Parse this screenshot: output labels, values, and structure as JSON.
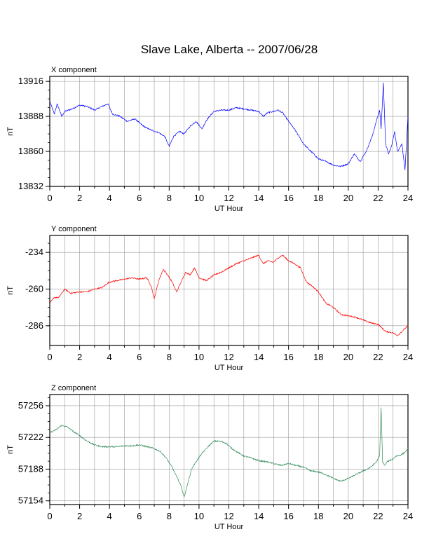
{
  "page_title": "Slave Lake, Alberta -- 2007/06/28",
  "chart_data": [
    {
      "type": "line",
      "title": "X component",
      "xlabel": "UT Hour",
      "ylabel": "nT",
      "xlim": [
        0,
        24
      ],
      "ylim": [
        13832,
        13920
      ],
      "x_ticks": [
        0,
        2,
        4,
        6,
        8,
        10,
        12,
        14,
        16,
        18,
        20,
        22,
        24
      ],
      "y_ticks": [
        13832,
        13860,
        13888,
        13916
      ],
      "grid": true,
      "series": [
        {
          "color": "#0000ff",
          "x": [
            0,
            0.3,
            0.5,
            0.8,
            1.0,
            1.5,
            2.0,
            2.5,
            3.0,
            3.5,
            3.9,
            4.2,
            4.7,
            5.2,
            5.7,
            6.3,
            6.8,
            7.3,
            7.7,
            8.0,
            8.3,
            8.7,
            9.0,
            9.4,
            9.8,
            10.2,
            10.5,
            11.0,
            11.5,
            12.0,
            12.5,
            13.0,
            13.5,
            14.0,
            14.3,
            14.6,
            15.0,
            15.3,
            15.6,
            16.0,
            16.5,
            17.0,
            17.5,
            18.0,
            18.5,
            19.0,
            19.5,
            20.0,
            20.4,
            20.8,
            21.2,
            21.6,
            21.9,
            22.1,
            22.2,
            22.35,
            22.5,
            22.7,
            22.9,
            23.1,
            23.3,
            23.6,
            23.8,
            24.0
          ],
          "y": [
            13900,
            13890,
            13898,
            13888,
            13892,
            13894,
            13897,
            13896,
            13893,
            13896,
            13898,
            13890,
            13888,
            13884,
            13886,
            13880,
            13877,
            13875,
            13872,
            13864,
            13872,
            13876,
            13874,
            13880,
            13884,
            13878,
            13885,
            13892,
            13893,
            13893,
            13895,
            13894,
            13893,
            13892,
            13888,
            13891,
            13892,
            13893,
            13891,
            13884,
            13876,
            13866,
            13860,
            13854,
            13852,
            13849,
            13848,
            13850,
            13858,
            13852,
            13860,
            13872,
            13885,
            13893,
            13878,
            13915,
            13866,
            13858,
            13864,
            13876,
            13860,
            13866,
            13845,
            13888
          ]
        }
      ]
    },
    {
      "type": "line",
      "title": "Y component",
      "xlabel": "UT Hour",
      "ylabel": "nT",
      "xlim": [
        0,
        24
      ],
      "ylim": [
        -300,
        -222
      ],
      "x_ticks": [
        0,
        2,
        4,
        6,
        8,
        10,
        12,
        14,
        16,
        18,
        20,
        22,
        24
      ],
      "y_ticks": [
        -286,
        -260,
        -234
      ],
      "grid": true,
      "series": [
        {
          "color": "#ff0000",
          "x": [
            0,
            0.3,
            0.6,
            1.0,
            1.4,
            2.0,
            2.5,
            3.0,
            3.5,
            4.0,
            4.5,
            5.0,
            5.5,
            6.0,
            6.5,
            6.8,
            7.0,
            7.3,
            7.6,
            7.9,
            8.2,
            8.5,
            8.8,
            9.1,
            9.4,
            9.7,
            10.0,
            10.5,
            11.0,
            11.5,
            12.0,
            12.5,
            13.0,
            13.5,
            14.0,
            14.3,
            14.6,
            15.0,
            15.3,
            15.6,
            16.0,
            16.4,
            16.8,
            17.2,
            17.6,
            18.0,
            18.5,
            19.0,
            19.5,
            20.0,
            20.5,
            21.0,
            21.5,
            22.0,
            22.5,
            23.0,
            23.3,
            23.6,
            24.0
          ],
          "y": [
            -270,
            -266,
            -266,
            -260,
            -263,
            -262,
            -262,
            -260,
            -259,
            -255,
            -254,
            -253,
            -252,
            -253,
            -252,
            -258,
            -267,
            -254,
            -246,
            -250,
            -255,
            -262,
            -255,
            -248,
            -250,
            -245,
            -252,
            -254,
            -250,
            -248,
            -245,
            -242,
            -240,
            -238,
            -236,
            -242,
            -240,
            -241,
            -238,
            -236,
            -240,
            -242,
            -245,
            -255,
            -258,
            -262,
            -270,
            -273,
            -278,
            -279,
            -280,
            -282,
            -284,
            -285,
            -290,
            -291,
            -293,
            -290,
            -286
          ]
        }
      ]
    },
    {
      "type": "line",
      "title": "Z component",
      "xlabel": "UT Hour",
      "ylabel": "nT",
      "xlim": [
        0,
        24
      ],
      "ylim": [
        57150,
        57268
      ],
      "x_ticks": [
        0,
        2,
        4,
        6,
        8,
        10,
        12,
        14,
        16,
        18,
        20,
        22,
        24
      ],
      "y_ticks": [
        57154,
        57188,
        57222,
        57256
      ],
      "grid": true,
      "series": [
        {
          "color": "#2e8b57",
          "x": [
            0,
            0.4,
            0.8,
            1.2,
            1.6,
            2.0,
            2.5,
            3.0,
            3.5,
            4.0,
            4.5,
            5.0,
            5.5,
            6.0,
            6.5,
            7.0,
            7.4,
            7.8,
            8.2,
            8.5,
            8.8,
            9.0,
            9.2,
            9.5,
            9.8,
            10.2,
            10.6,
            11.0,
            11.4,
            11.8,
            12.2,
            12.6,
            13.0,
            13.5,
            14.0,
            14.5,
            15.0,
            15.5,
            16.0,
            16.5,
            17.0,
            17.5,
            18.0,
            18.5,
            19.0,
            19.5,
            20.0,
            20.5,
            21.0,
            21.5,
            21.9,
            22.1,
            22.2,
            22.3,
            22.45,
            22.6,
            22.9,
            23.2,
            23.5,
            23.8,
            24.0
          ],
          "y": [
            57227,
            57230,
            57235,
            57233,
            57228,
            57224,
            57218,
            57214,
            57212,
            57212,
            57212,
            57213,
            57213,
            57214,
            57212,
            57210,
            57207,
            57200,
            57190,
            57180,
            57170,
            57158,
            57170,
            57188,
            57196,
            57205,
            57212,
            57218,
            57218,
            57216,
            57210,
            57206,
            57202,
            57200,
            57197,
            57196,
            57194,
            57192,
            57194,
            57192,
            57190,
            57186,
            57185,
            57182,
            57178,
            57175,
            57178,
            57182,
            57186,
            57190,
            57196,
            57202,
            57254,
            57196,
            57192,
            57196,
            57198,
            57202,
            57203,
            57206,
            57210
          ]
        }
      ]
    }
  ]
}
